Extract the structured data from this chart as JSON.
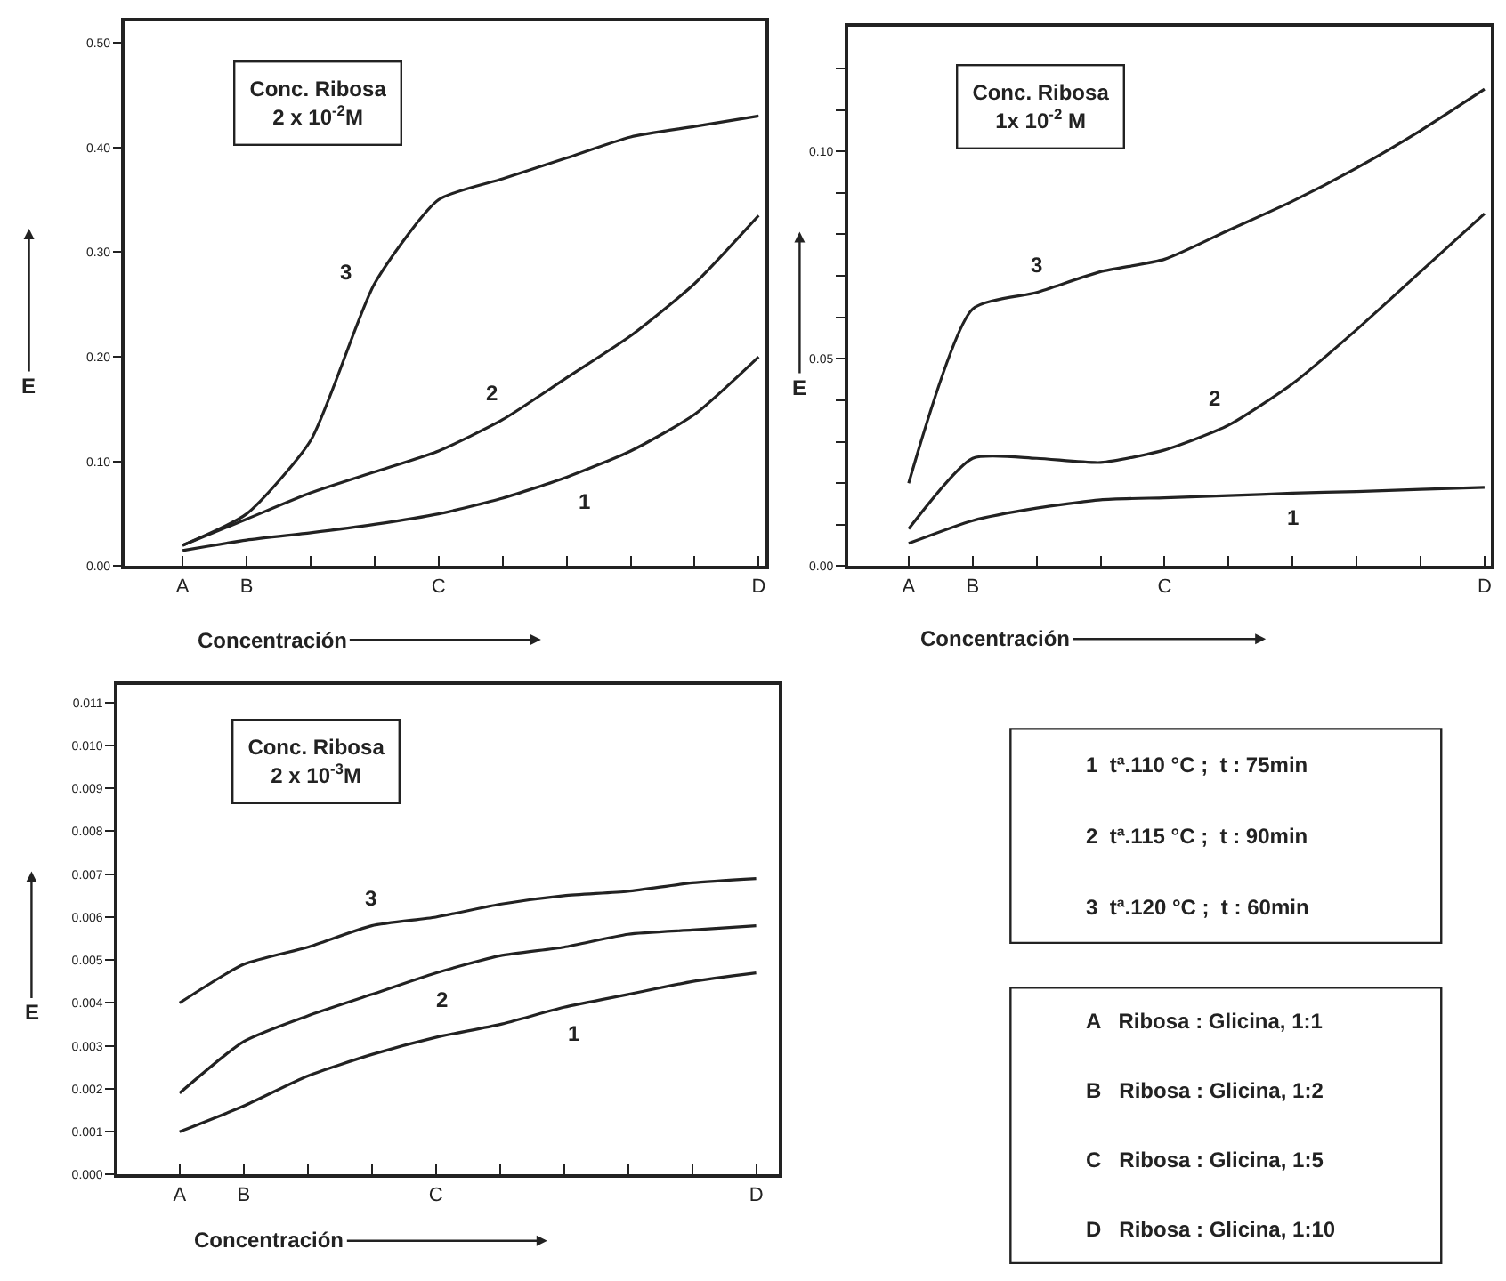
{
  "chart_data": [
    {
      "type": "line",
      "title": "Conc. Ribosa",
      "subtitle": "2 x 10$^{-2}$M",
      "xlabel": "Concentración",
      "ylabel": "E",
      "categories": [
        "A",
        "B",
        null,
        null,
        "C",
        null,
        null,
        null,
        null,
        "D"
      ],
      "ylim": [
        0,
        0.52
      ],
      "yticks": [
        {
          "value": 0,
          "label": "0.00"
        },
        {
          "value": 0.1,
          "label": "0.10"
        },
        {
          "value": 0.2,
          "label": "0.20"
        },
        {
          "value": 0.3,
          "label": "0.30"
        },
        {
          "value": 0.4,
          "label": "0.40"
        },
        {
          "value": 0.5,
          "label": "0.50"
        }
      ],
      "series": [
        {
          "name": "1",
          "color": "#222222",
          "values": [
            0.015,
            0.025,
            0.032,
            0.04,
            0.05,
            0.065,
            0.085,
            0.11,
            0.145,
            0.2
          ]
        },
        {
          "name": "2",
          "color": "#222222",
          "values": [
            0.02,
            0.045,
            0.07,
            0.09,
            0.11,
            0.14,
            0.18,
            0.22,
            0.27,
            0.335
          ]
        },
        {
          "name": "3",
          "color": "#222222",
          "values": [
            0.02,
            0.05,
            0.12,
            0.27,
            0.35,
            0.37,
            0.39,
            0.41,
            0.42,
            0.43
          ]
        }
      ]
    },
    {
      "type": "line",
      "title": "Conc. Ribosa",
      "subtitle": "1x 10$^{-2}$ M",
      "xlabel": "Concentración",
      "ylabel": "E",
      "categories": [
        "A",
        "B",
        null,
        null,
        "C",
        null,
        null,
        null,
        null,
        "D"
      ],
      "ylim": [
        0,
        0.13
      ],
      "yticks": [
        {
          "value": 0,
          "label": "0.00"
        },
        {
          "value": 0.01,
          "label": null
        },
        {
          "value": 0.02,
          "label": null
        },
        {
          "value": 0.03,
          "label": null
        },
        {
          "value": 0.04,
          "label": null
        },
        {
          "value": 0.05,
          "label": "0.05"
        },
        {
          "value": 0.06,
          "label": null
        },
        {
          "value": 0.07,
          "label": null
        },
        {
          "value": 0.08,
          "label": null
        },
        {
          "value": 0.09,
          "label": null
        },
        {
          "value": 0.1,
          "label": "0.10"
        },
        {
          "value": 0.11,
          "label": null
        },
        {
          "value": 0.12,
          "label": null
        }
      ],
      "series": [
        {
          "name": "1",
          "color": "#222222",
          "values": [
            0.0055,
            0.011,
            0.014,
            0.016,
            0.0165,
            0.017,
            0.0176,
            0.018,
            0.0185,
            0.019
          ]
        },
        {
          "name": "2",
          "color": "#222222",
          "values": [
            0.009,
            0.026,
            0.026,
            0.025,
            0.028,
            0.034,
            0.044,
            0.057,
            0.071,
            0.085
          ]
        },
        {
          "name": "3",
          "color": "#222222",
          "values": [
            0.02,
            0.062,
            0.066,
            0.071,
            0.074,
            0.081,
            0.088,
            0.096,
            0.105,
            0.115
          ]
        }
      ]
    },
    {
      "type": "line",
      "title": "Conc. Ribosa",
      "subtitle": "2 x 10$^{-3}$M",
      "xlabel": "Concentración",
      "ylabel": "E",
      "categories": [
        "A",
        "B",
        null,
        null,
        "C",
        null,
        null,
        null,
        null,
        "D"
      ],
      "ylim": [
        0,
        0.0114
      ],
      "yticks": [
        {
          "value": 0,
          "label": "0.000"
        },
        {
          "value": 0.001,
          "label": "0.001"
        },
        {
          "value": 0.002,
          "label": "0.002"
        },
        {
          "value": 0.003,
          "label": "0.003"
        },
        {
          "value": 0.004,
          "label": "0.004"
        },
        {
          "value": 0.005,
          "label": "0.005"
        },
        {
          "value": 0.006,
          "label": "0.006"
        },
        {
          "value": 0.007,
          "label": "0.007"
        },
        {
          "value": 0.008,
          "label": "0.008"
        },
        {
          "value": 0.009,
          "label": "0.009"
        },
        {
          "value": 0.01,
          "label": "0.010"
        },
        {
          "value": 0.011,
          "label": "0.011"
        }
      ],
      "series": [
        {
          "name": "1",
          "color": "#222222",
          "values": [
            0.001,
            0.0016,
            0.0023,
            0.0028,
            0.0032,
            0.0035,
            0.0039,
            0.0042,
            0.0045,
            0.0047
          ]
        },
        {
          "name": "2",
          "color": "#222222",
          "values": [
            0.0019,
            0.0031,
            0.0037,
            0.0042,
            0.0047,
            0.0051,
            0.0053,
            0.0056,
            0.0057,
            0.0058
          ]
        },
        {
          "name": "3",
          "color": "#222222",
          "values": [
            0.004,
            0.0049,
            0.0053,
            0.0058,
            0.006,
            0.0063,
            0.0065,
            0.0066,
            0.0068,
            0.0069
          ]
        }
      ]
    },
    {
      "type": "other",
      "annotations": [
        "1  tª.110 °C ;  t : 75min",
        "2  tª.115 °C ;  t : 90min",
        "3  tª.120 °C ;  t : 60min"
      ]
    },
    {
      "type": "other",
      "annotations": [
        "A   Ribosa : Glicina, 1:1",
        "B   Ribosa : Glicina, 1:2",
        "C   Ribosa : Glicina, 1:5",
        "D   Ribosa : Glicina, 1:10"
      ]
    }
  ]
}
